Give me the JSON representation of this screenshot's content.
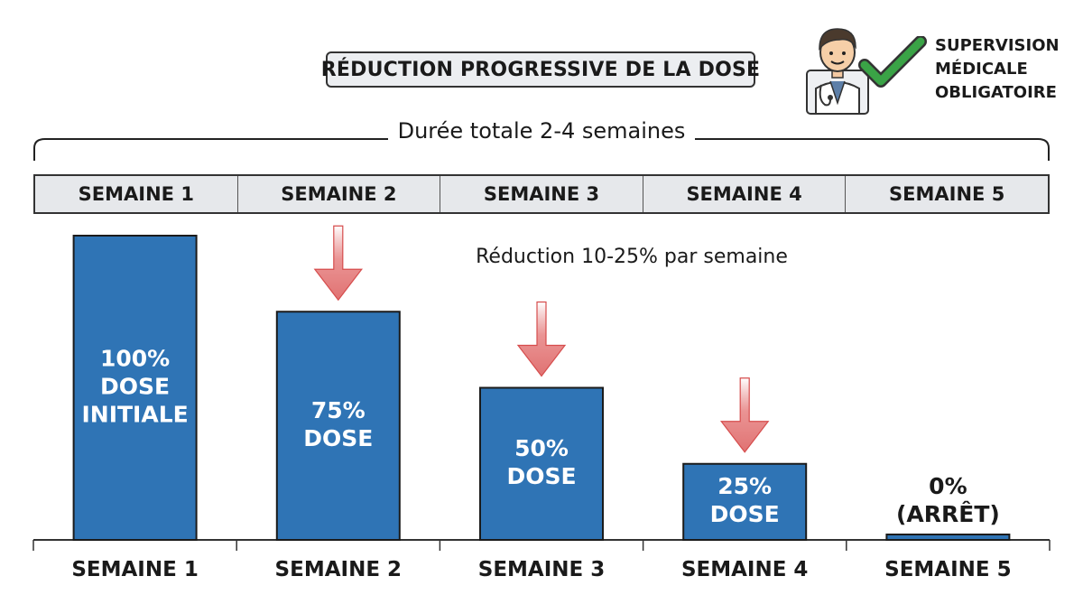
{
  "title": "RÉDUCTION PROGRESSIVE DE LA DOSE",
  "supervision": {
    "lines": [
      "SUPERVISION",
      "MÉDICALE",
      "OBLIGATOIRE"
    ],
    "icons": [
      "doctor-icon",
      "checkmark-icon"
    ],
    "check_color": "#3aa346"
  },
  "duration_label": "Durée totale 2-4 semaines",
  "weeks_header": [
    "SEMAINE 1",
    "SEMAINE 2",
    "SEMAINE 3",
    "SEMAINE 4",
    "SEMAINE 5"
  ],
  "subtitle": "Réduction 10-25% par semaine",
  "colors": {
    "bar": "#2f74b5",
    "arrow": "#e07272"
  },
  "chart_data": {
    "type": "bar",
    "categories": [
      "SEMAINE 1",
      "SEMAINE 2",
      "SEMAINE 3",
      "SEMAINE 4",
      "SEMAINE 5"
    ],
    "values": [
      100,
      75,
      50,
      25,
      0
    ],
    "bar_labels": [
      [
        "100%",
        "DOSE",
        "INITIALE"
      ],
      [
        "75%",
        "DOSE"
      ],
      [
        "50%",
        "DOSE"
      ],
      [
        "25%",
        "DOSE"
      ],
      [
        "0%",
        "(ARRÊT)"
      ]
    ],
    "unit": "%",
    "ylim": [
      0,
      100
    ],
    "grid": false,
    "legend": "none"
  }
}
